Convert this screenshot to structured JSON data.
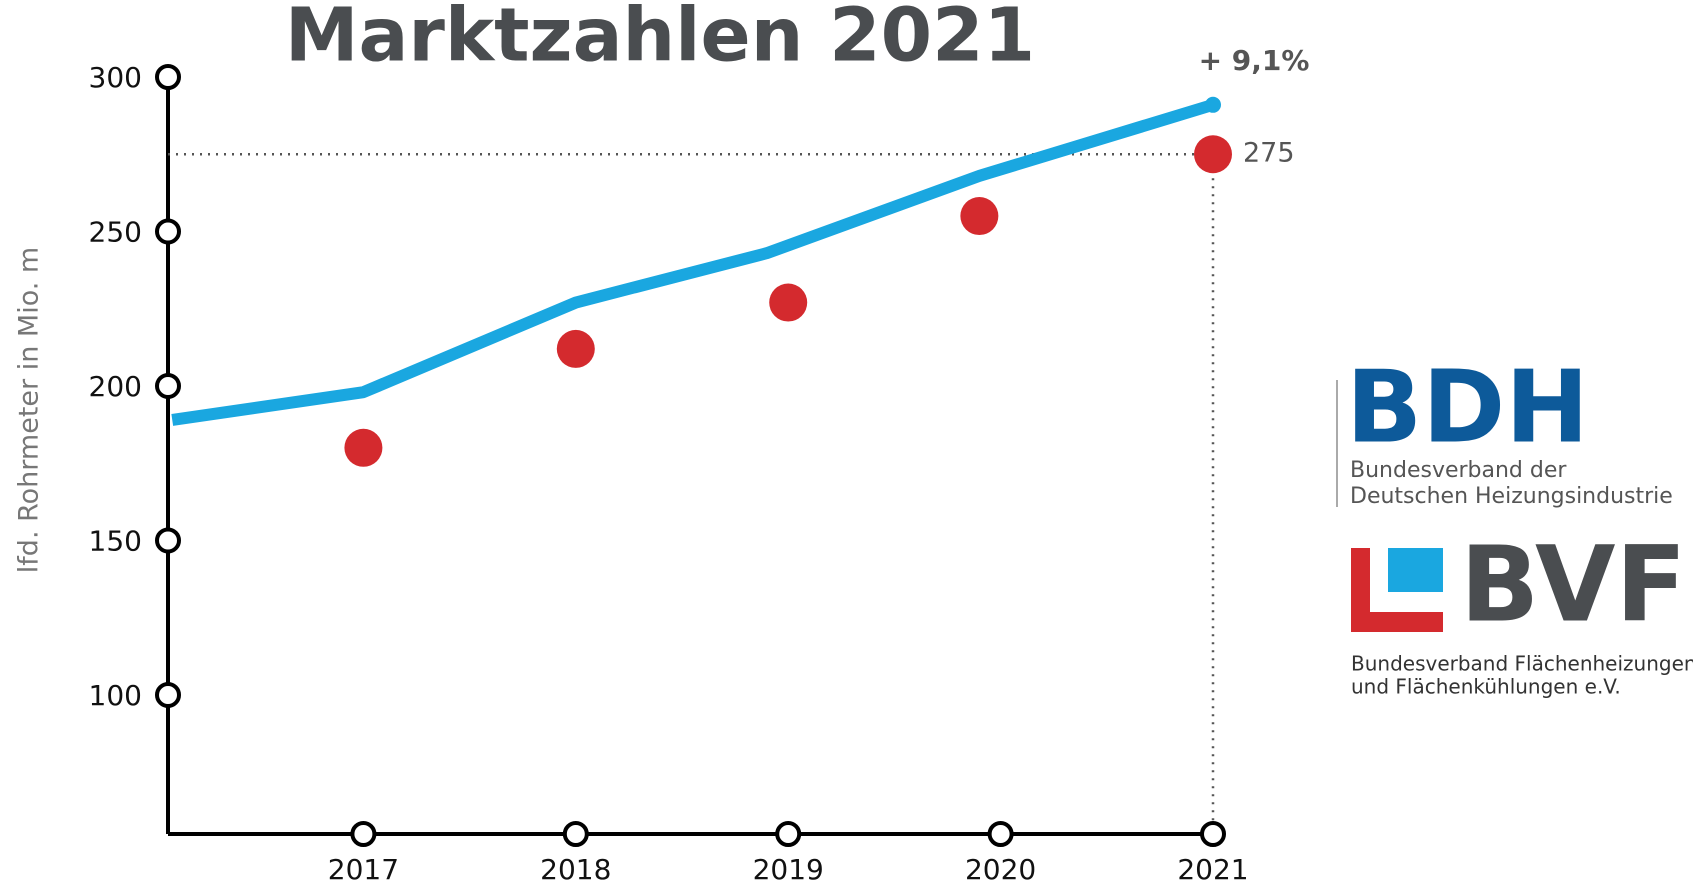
{
  "chart_data": {
    "type": "line",
    "title": "Marktzahlen 2021",
    "y_label": "lfd. Rohrmeter in Mio. m",
    "annotation": "+ 9,1%",
    "xlim": [
      2016.08,
      2021
    ],
    "xticks": [
      2017,
      2018,
      2019,
      2020,
      2021
    ],
    "ylim": [
      55,
      300
    ],
    "yticks": [
      100,
      150,
      200,
      250,
      300
    ],
    "series": [
      {
        "color": "#1aa7e0",
        "x": [
          2016.1,
          2017,
          2018,
          2018.9,
          2019.9,
          2021
        ],
        "values": [
          189,
          198,
          227,
          243,
          268,
          291
        ]
      },
      {
        "type": "scatter",
        "color": "#d42a2e",
        "x": [
          2017,
          2018,
          2019,
          2019.9,
          2021
        ],
        "values": [
          180,
          212,
          227,
          255,
          275
        ]
      }
    ]
  },
  "logos": {
    "bdh": {
      "name": "BDH",
      "lines": [
        "Bundesverband der",
        "Deutschen Heizungsindustrie"
      ]
    },
    "bvf": {
      "name": "BVF",
      "lines": [
        "Bundesverband Flächenheizungen",
        "und Flächenkühlungen e.V."
      ]
    }
  }
}
